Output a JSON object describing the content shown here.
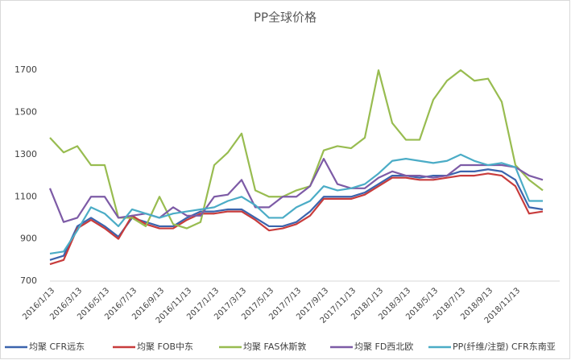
{
  "chart_data": {
    "type": "line",
    "title": "PP全球价格",
    "categories": [
      "2016/1/13",
      null,
      "2016/3/13",
      null,
      "2016/5/13",
      null,
      "2016/7/13",
      null,
      "2016/9/13",
      null,
      "2016/11/13",
      null,
      "2017/1/13",
      null,
      "2017/3/13",
      null,
      "2017/5/13",
      null,
      "2017/7/13",
      null,
      "2017/9/13",
      null,
      "2017/11/13",
      null,
      "2018/1/13",
      null,
      "2018/3/13",
      null,
      "2018/5/13",
      null,
      "2018/7/13",
      null,
      "2018/9/13",
      null,
      "2018/11/13",
      null,
      null
    ],
    "ylim": [
      700,
      1800
    ],
    "yticks": [
      700,
      900,
      1100,
      1300,
      1500,
      1700
    ],
    "grid": false,
    "legend": "bottom",
    "series": [
      {
        "name": "均聚 CFR远东",
        "color": "#3b64ad",
        "values": [
          800,
          820,
          960,
          1000,
          960,
          910,
          1000,
          980,
          960,
          960,
          1000,
          1030,
          1030,
          1040,
          1040,
          1000,
          960,
          960,
          980,
          1030,
          1100,
          1100,
          1100,
          1120,
          1160,
          1200,
          1200,
          1190,
          1200,
          1200,
          1220,
          1220,
          1230,
          1220,
          1180,
          1050,
          1040
        ]
      },
      {
        "name": "均聚 FOB中东",
        "color": "#c83c3c",
        "values": [
          780,
          800,
          950,
          990,
          950,
          900,
          1010,
          970,
          950,
          950,
          990,
          1020,
          1020,
          1030,
          1030,
          990,
          940,
          950,
          970,
          1010,
          1090,
          1090,
          1090,
          1110,
          1150,
          1190,
          1190,
          1180,
          1180,
          1190,
          1200,
          1200,
          1210,
          1200,
          1150,
          1020,
          1030
        ]
      },
      {
        "name": "均聚 FAS休斯敦",
        "color": "#98bc50",
        "values": [
          1380,
          1310,
          1340,
          1250,
          1250,
          1000,
          1000,
          960,
          1100,
          970,
          950,
          980,
          1250,
          1310,
          1400,
          1130,
          1100,
          1100,
          1130,
          1150,
          1320,
          1340,
          1330,
          1380,
          1700,
          1450,
          1370,
          1370,
          1560,
          1650,
          1700,
          1650,
          1660,
          1550,
          1250,
          1180,
          1130
        ]
      },
      {
        "name": "均聚 FD西北欧",
        "color": "#7d5ba6",
        "values": [
          1140,
          980,
          1000,
          1100,
          1100,
          1000,
          1010,
          1020,
          1000,
          1050,
          1010,
          1010,
          1100,
          1110,
          1180,
          1050,
          1050,
          1100,
          1100,
          1150,
          1280,
          1160,
          1140,
          1140,
          1190,
          1220,
          1200,
          1200,
          1190,
          1200,
          1250,
          1250,
          1250,
          1250,
          1240,
          1200,
          1180
        ]
      },
      {
        "name": "PP(纤维/注塑) CFR东南亚",
        "color": "#4bacc6",
        "values": [
          830,
          840,
          940,
          1050,
          1020,
          960,
          1040,
          1020,
          1000,
          1020,
          1030,
          1040,
          1050,
          1080,
          1100,
          1060,
          1000,
          1000,
          1050,
          1080,
          1150,
          1130,
          1140,
          1160,
          1210,
          1270,
          1280,
          1270,
          1260,
          1270,
          1300,
          1270,
          1250,
          1260,
          1240,
          1080,
          1080
        ]
      }
    ]
  }
}
